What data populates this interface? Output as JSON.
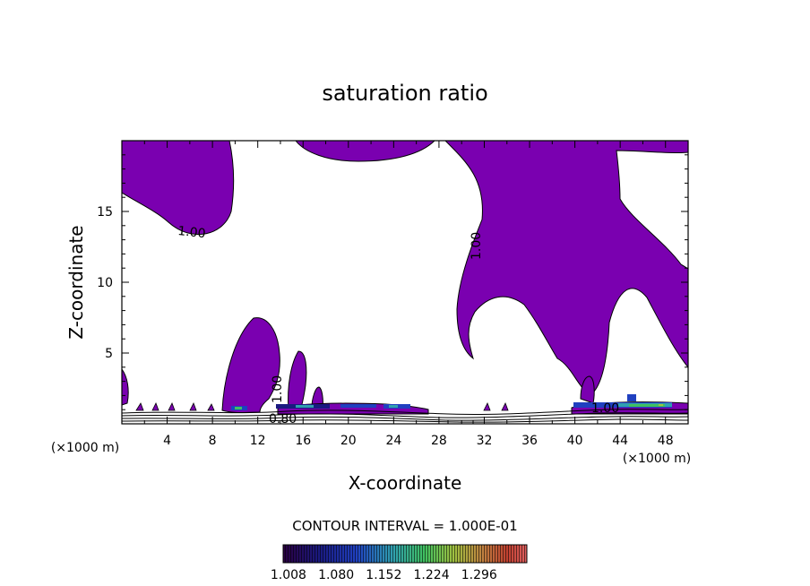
{
  "chart_data": {
    "type": "contour",
    "title": "saturation ratio",
    "xlabel": "X-coordinate",
    "ylabel": "Z-coordinate",
    "x_unit": "(×1000 m)",
    "z_unit": "(×1000 m)",
    "xlim": [
      0,
      50
    ],
    "ylim": [
      0,
      20
    ],
    "x_ticks": [
      "4",
      "8",
      "12",
      "16",
      "20",
      "24",
      "28",
      "32",
      "36",
      "40",
      "44",
      "48"
    ],
    "y_ticks": [
      "5",
      "10",
      "15"
    ],
    "contour_labels": [
      "1.00",
      "1.00",
      "1.00",
      "0.80",
      "1.00"
    ],
    "contour_interval": "CONTOUR INTERVAL = 1.000E-01",
    "colorbar_labels": [
      "1.008",
      "1.080",
      "1.152",
      "1.224",
      "1.296"
    ],
    "fill_color": "#7a00b0",
    "colorbar_stops": [
      "#2a0040",
      "#1a1a80",
      "#2040c0",
      "#30a0b0",
      "#40c060",
      "#a0c040",
      "#c08040",
      "#c04030",
      "#e06060"
    ]
  }
}
